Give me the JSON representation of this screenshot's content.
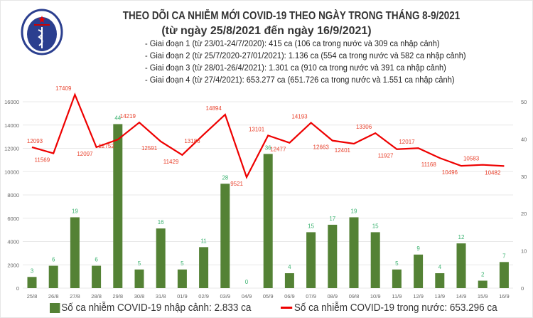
{
  "header": {
    "logo_text": "BỘ Y TẾ · MINISTRY OF HEALTH",
    "title": "THEO DÕI CA NHIỄM MỚI COVID-19 THEO NGÀY TRONG THÁNG 8-9/2021",
    "subtitle": "(từ ngày 25/8/2021 đến ngày 16/9/2021)",
    "stages": [
      "- Giai đoạn 1 (từ 23/01-24/7/2020): 415 ca (106 ca trong nước và 309 ca nhập cảnh)",
      "- Giai đoạn 2 (từ 25/7/2020-27/01/2021): 1.136 ca (554 ca trong nước và 582 ca nhập cảnh)",
      "- Giai đoạn 3 (từ 28/01-26/4/2021): 1.301 ca (910 ca trong nước và 391 ca nhập cảnh)",
      "- Giai đoạn 4 (từ 27/4/2021): 653.277 ca (651.726 ca trong nước và 1.551 ca nhập cảnh)"
    ]
  },
  "chart_data": {
    "type": "bar+line",
    "categories": [
      "25/8",
      "26/8",
      "27/8",
      "28/8",
      "29/8",
      "30/8",
      "31/8",
      "01/9",
      "02/9",
      "03/9",
      "04/9",
      "05/9",
      "06/9",
      "07/9",
      "08/9",
      "09/8",
      "10/9",
      "11/9",
      "12/9",
      "13/9",
      "14/9",
      "15/9",
      "16/9"
    ],
    "series": [
      {
        "name": "Số ca nhiễm COVID-19 nhập cảnh: 2.833 ca",
        "type": "bar",
        "axis": "right",
        "color": "#548235",
        "label_color": "#3cb371",
        "values": [
          3,
          6,
          19,
          6,
          44,
          5,
          16,
          5,
          11,
          28,
          0,
          36,
          4,
          15,
          17,
          19,
          15,
          5,
          9,
          4,
          12,
          2,
          7
        ]
      },
      {
        "name": "Số ca nhiễm COVID-19 trong nước: 653.296 ca",
        "type": "line",
        "axis": "left",
        "color": "#ee0000",
        "label_color": "#e8412c",
        "values": [
          12093,
          11569,
          17409,
          12097,
          12752,
          14219,
          12591,
          11429,
          13186,
          14894,
          9521,
          13101,
          12477,
          14193,
          12663,
          12401,
          13306,
          11927,
          12017,
          11168,
          10496,
          10583,
          10482
        ]
      }
    ],
    "left_axis": {
      "ylim": [
        0,
        16000
      ],
      "ticks": [
        "0",
        "2000",
        "4000",
        "6000",
        "8000",
        "10000",
        "12000",
        "14000",
        "16000"
      ]
    },
    "right_axis": {
      "ylim": [
        0,
        50
      ],
      "ticks": [
        "0",
        "10",
        "20",
        "30",
        "40",
        "50"
      ]
    },
    "grid": true,
    "legend": "bottom"
  }
}
